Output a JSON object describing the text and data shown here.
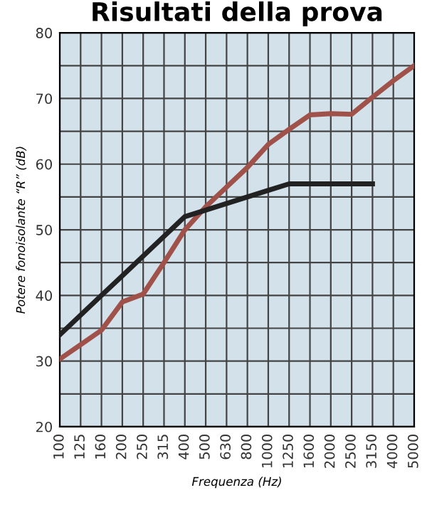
{
  "chart_data": {
    "type": "line",
    "title": "Risultati della prova",
    "xlabel": "Frequenza (Hz)",
    "ylabel": "Potere fonoisolante “R” (dB)",
    "categories": [
      "100",
      "125",
      "160",
      "200",
      "250",
      "315",
      "400",
      "500",
      "630",
      "800",
      "1000",
      "1250",
      "1600",
      "2000",
      "2500",
      "3150",
      "4000",
      "5000"
    ],
    "series": [
      {
        "color": "#a0524a",
        "values": [
          30.3,
          32.5,
          34.7,
          39,
          40.2,
          45,
          50,
          53.5,
          56.5,
          59.5,
          63,
          65.3,
          67.5,
          67.7,
          67.6,
          70.2,
          72.7,
          75
        ]
      },
      {
        "color": "#222222",
        "values": [
          34,
          37,
          40,
          43,
          46,
          49,
          52,
          53,
          54,
          55,
          56,
          57,
          57,
          57,
          57,
          57,
          null,
          null
        ]
      }
    ],
    "ylim": [
      20,
      80
    ],
    "yticks": [
      20,
      {
        "value": 25,
        "label": null
      },
      30,
      {
        "value": 35,
        "label": null
      },
      40,
      {
        "value": 45,
        "label": null
      },
      50,
      {
        "value": 55,
        "label": null
      },
      60,
      {
        "value": 65,
        "label": null
      },
      70,
      {
        "value": 75,
        "label": null
      },
      80
    ],
    "grid": true,
    "marker": "none",
    "line_style": "solid"
  }
}
